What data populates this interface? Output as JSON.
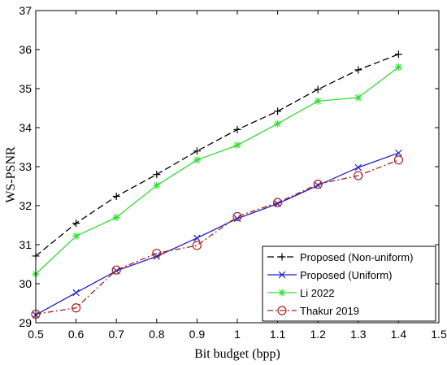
{
  "chart_data": {
    "type": "line",
    "xlabel": "Bit budget (bpp)",
    "ylabel": "WS-PSNR",
    "xlim": [
      0.5,
      1.5
    ],
    "ylim": [
      29,
      37
    ],
    "xticks": [
      "0.5",
      "0.6",
      "0.7",
      "0.8",
      "0.9",
      "1",
      "1.1",
      "1.2",
      "1.3",
      "1.4",
      "1.5"
    ],
    "yticks": [
      "29",
      "30",
      "31",
      "32",
      "33",
      "34",
      "35",
      "36",
      "37"
    ],
    "grid": false,
    "legend_position": "bottom-right",
    "x": [
      0.5,
      0.6,
      0.7,
      0.8,
      0.9,
      1.0,
      1.1,
      1.2,
      1.3,
      1.4
    ],
    "series": [
      {
        "name": "Proposed (Non-uniform)",
        "values": [
          30.71,
          31.55,
          32.24,
          32.8,
          33.4,
          33.95,
          34.42,
          34.98,
          35.48,
          35.88
        ],
        "color": "#000000",
        "marker": "plus",
        "dash": "dashed"
      },
      {
        "name": "Proposed (Uniform)",
        "values": [
          29.2,
          29.77,
          30.33,
          30.7,
          31.17,
          31.67,
          32.05,
          32.52,
          32.98,
          33.35
        ],
        "color": "#1f1fcc",
        "marker": "x",
        "dash": "solid"
      },
      {
        "name": "Li 2022",
        "values": [
          30.25,
          31.22,
          31.7,
          32.52,
          33.17,
          33.55,
          34.1,
          34.68,
          34.77,
          35.55
        ],
        "color": "#33dd33",
        "marker": "asterisk",
        "dash": "solid"
      },
      {
        "name": "Thakur 2019",
        "values": [
          29.22,
          29.38,
          30.35,
          30.78,
          30.98,
          31.72,
          32.08,
          32.55,
          32.77,
          33.17
        ],
        "color": "#a82020",
        "marker": "circle",
        "dash": "dashdot"
      }
    ]
  }
}
